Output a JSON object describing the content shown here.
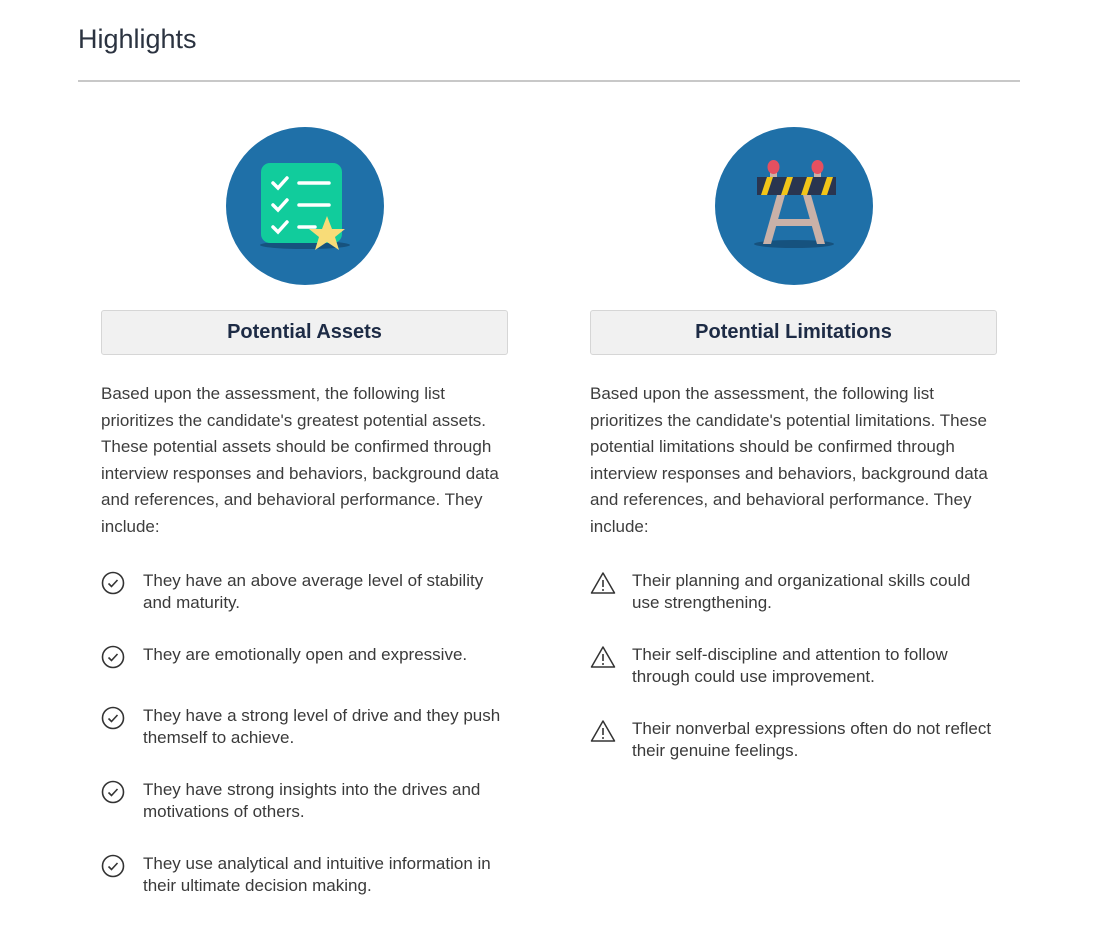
{
  "title": "Highlights",
  "assets": {
    "heading": "Potential Assets",
    "intro": "Based upon the assessment, the following list prioritizes the candidate's greatest potential assets. These potential assets should be confirmed through interview responses and behaviors, background data and references, and behavioral performance. They include:",
    "icon": "checklist-star-icon",
    "items": [
      "They have an above average level of stability and maturity.",
      "They are emotionally open and expressive.",
      "They have a strong level of drive and they push themself to achieve.",
      "They have strong insights into the drives and motivations of others.",
      "They use analytical and intuitive information in their ultimate decision making."
    ]
  },
  "limitations": {
    "heading": "Potential Limitations",
    "intro": "Based upon the assessment, the following list prioritizes the candidate's potential limitations. These potential limitations should be confirmed through interview responses and behaviors, background data and references, and behavioral performance. They include:",
    "icon": "road-barrier-icon",
    "items": [
      "Their planning and organizational skills could use strengthening.",
      "Their self-discipline and attention to follow through could use improvement.",
      "Their nonverbal expressions often do not reflect their genuine feelings."
    ]
  },
  "colors": {
    "circle": "#1f70a8",
    "header_bg": "#f1f1f1",
    "heading_text": "#1d2b45"
  }
}
